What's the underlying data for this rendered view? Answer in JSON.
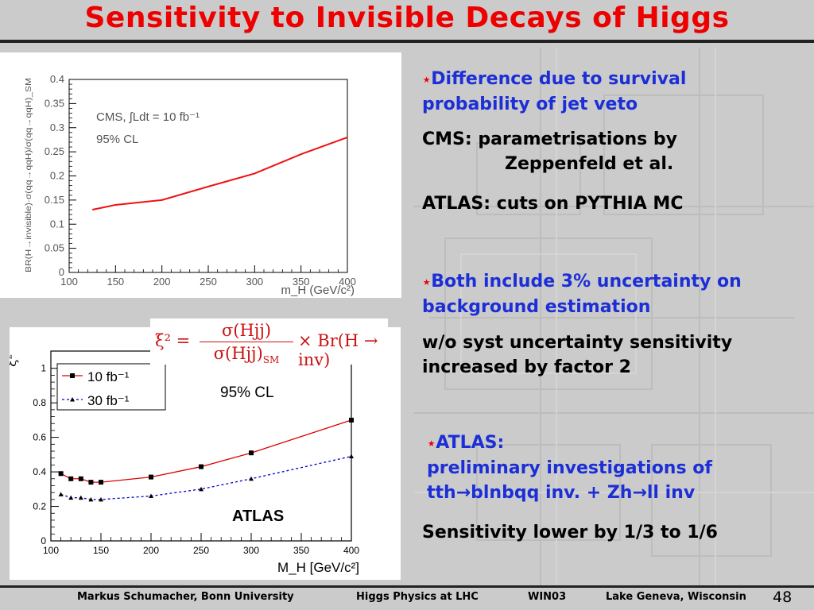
{
  "slide": {
    "title": "Sensitivity to Invisible Decays of Higgs",
    "bullets": [
      {
        "star": "⋆",
        "text1": "Difference due to survival",
        "text2": "probability of jet veto"
      },
      {
        "star": "⋆",
        "text1": "Both include 3% uncertainty on",
        "text2": "background estimation"
      },
      {
        "star": "⋆",
        "text1": "ATLAS:",
        "text2": "preliminary investigations of",
        "text3": "tth→blnbqq inv. + Zh→ll inv"
      }
    ],
    "body": {
      "cms_line1": "CMS: parametrisations by",
      "cms_line2": "Zeppenfeld et al.",
      "atlas_line": "ATLAS: cuts on PYTHIA MC",
      "wo_line1": "w/o syst uncertainty sensitivity",
      "wo_line2": "increased by factor 2",
      "lower_line": "Sensitivity lower by 1/3 to 1/6"
    },
    "formula": {
      "lhs": "ξ² =",
      "numerator": "σ(Hjj)",
      "denominator": "σ(Hjj)",
      "denominator_sub": "SM",
      "rhs": "× Br(H → inv)"
    },
    "footer": {
      "author": "Markus Schumacher,  Bonn University",
      "talk": "Higgs Physics at LHC",
      "conf": "WIN03",
      "place": "Lake Geneva, Wisconsin",
      "page": "48"
    }
  },
  "colors": {
    "title": "#ee0000",
    "blue_text": "#1c2fd6",
    "curve": "#ee1111",
    "dashed": "#0000cc"
  },
  "chart_data": [
    {
      "type": "line",
      "title": "",
      "annotations": [
        "CMS, ∫Ldt = 10 fb⁻¹",
        "95% CL"
      ],
      "xlabel": "m_H (GeV/c²)",
      "ylabel": "BR(H→invisible)·σ(qq→qqH)/σ(qq→qqH)_SM",
      "xlim": [
        100,
        400
      ],
      "ylim": [
        0,
        0.4
      ],
      "xticks": [
        100,
        150,
        200,
        250,
        300,
        350,
        400
      ],
      "yticks": [
        0,
        0.05,
        0.1,
        0.15,
        0.2,
        0.25,
        0.3,
        0.35,
        0.4
      ],
      "ytick_labels": [
        "0",
        "0.05",
        "0.1",
        "0.15",
        "0.2",
        "0.25",
        "0.3",
        "0.35",
        "0.4"
      ],
      "series": [
        {
          "x": [
            125,
            135,
            150,
            200,
            250,
            300,
            350,
            400
          ],
          "values": [
            0.13,
            0.134,
            0.14,
            0.15,
            0.178,
            0.205,
            0.245,
            0.28
          ]
        }
      ]
    },
    {
      "type": "line",
      "annotations": [
        "95% CL",
        "ATLAS"
      ],
      "xlabel": "M_H [GeV/c²]",
      "ylabel": "ξ²",
      "xlim": [
        100,
        400
      ],
      "ylim": [
        0,
        1.1
      ],
      "xticks": [
        100,
        150,
        200,
        250,
        300,
        350,
        400
      ],
      "yticks": [
        0,
        0.2,
        0.4,
        0.6,
        0.8,
        1
      ],
      "ytick_labels": [
        "0",
        "0.2",
        "0.4",
        "0.6",
        "0.8",
        "1"
      ],
      "legend_position": "top-left",
      "series": [
        {
          "name": "10 fb⁻¹",
          "style": "solid-square",
          "x": [
            110,
            120,
            130,
            140,
            150,
            200,
            250,
            300,
            400
          ],
          "values": [
            0.39,
            0.36,
            0.36,
            0.34,
            0.34,
            0.37,
            0.43,
            0.51,
            0.7
          ]
        },
        {
          "name": "30 fb⁻¹",
          "style": "dashed-triangle",
          "x": [
            110,
            120,
            130,
            140,
            150,
            200,
            250,
            300,
            400
          ],
          "values": [
            0.27,
            0.25,
            0.25,
            0.24,
            0.24,
            0.26,
            0.3,
            0.36,
            0.49
          ]
        }
      ]
    }
  ]
}
